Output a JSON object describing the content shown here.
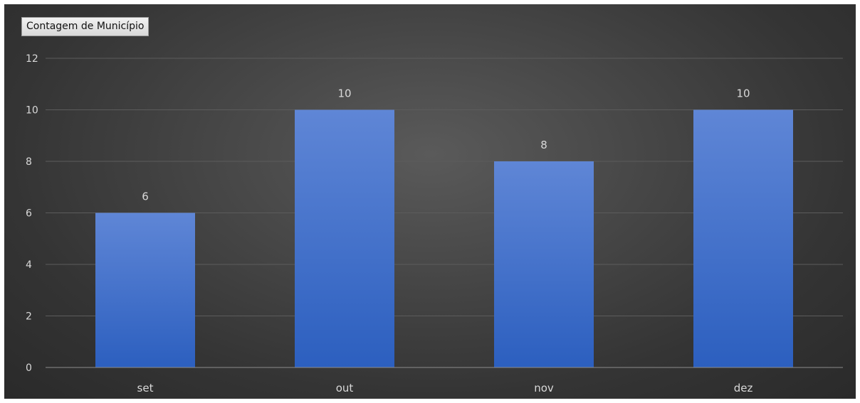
{
  "field_button": {
    "label": "Contagem de Município"
  },
  "chart_data": {
    "type": "bar",
    "categories": [
      "set",
      "out",
      "nov",
      "dez"
    ],
    "values": [
      6,
      10,
      8,
      10
    ],
    "data_labels": [
      "6",
      "10",
      "8",
      "10"
    ],
    "ylim": [
      0,
      12
    ],
    "yticks": [
      0,
      2,
      4,
      6,
      8,
      10,
      12
    ],
    "grid": true,
    "legend": "none",
    "colors": {
      "bar_top": "#5f86d6",
      "bar_bottom": "#2c5fbf",
      "gridline": "#5c5c5c",
      "axis_line": "#8c8c8c",
      "text": "#d9d9d9"
    }
  }
}
